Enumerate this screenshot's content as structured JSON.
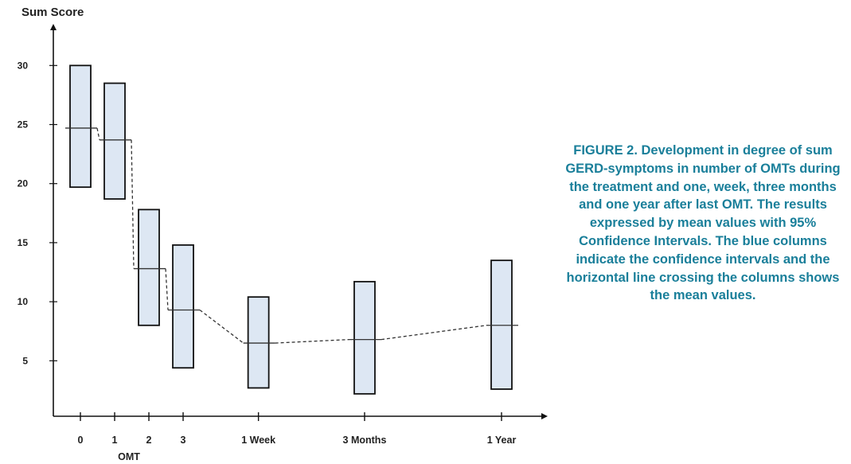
{
  "chart_data": {
    "type": "box-interval",
    "title": "",
    "ylabel": "Sum Score",
    "xlabel": "OMT",
    "ylim": [
      1.5,
      33
    ],
    "yticks": [
      5,
      10,
      15,
      20,
      25,
      30
    ],
    "categories": [
      "0",
      "1",
      "2",
      "3",
      "1 Week",
      "3 Months",
      "1 Year"
    ],
    "x_positions": [
      0,
      1,
      2,
      3,
      5.2,
      8.3,
      12.3
    ],
    "series": [
      {
        "means": [
          24.7,
          23.7,
          12.8,
          9.3,
          6.5,
          6.8,
          8.0
        ],
        "ci_lower": [
          19.7,
          18.7,
          8.0,
          4.4,
          2.7,
          2.2,
          2.6
        ],
        "ci_upper": [
          30.0,
          28.5,
          17.8,
          14.8,
          10.4,
          11.7,
          13.5
        ]
      }
    ],
    "grid": false,
    "colors": {
      "box_fill": "#dde7f3",
      "box_stroke": "#111111",
      "mean_line": "#333333",
      "axis": "#111111"
    }
  },
  "caption": "FIGURE 2. Development in degree of sum GERD-symptoms in number of OMTs during the treatment and one, week, three months and one year after last OMT. The results expressed by mean values with 95% Confidence Intervals. The blue columns indicate the confidence intervals and the horizontal line crossing the columns shows the mean values.",
  "caption_color": "#1a7f9a"
}
